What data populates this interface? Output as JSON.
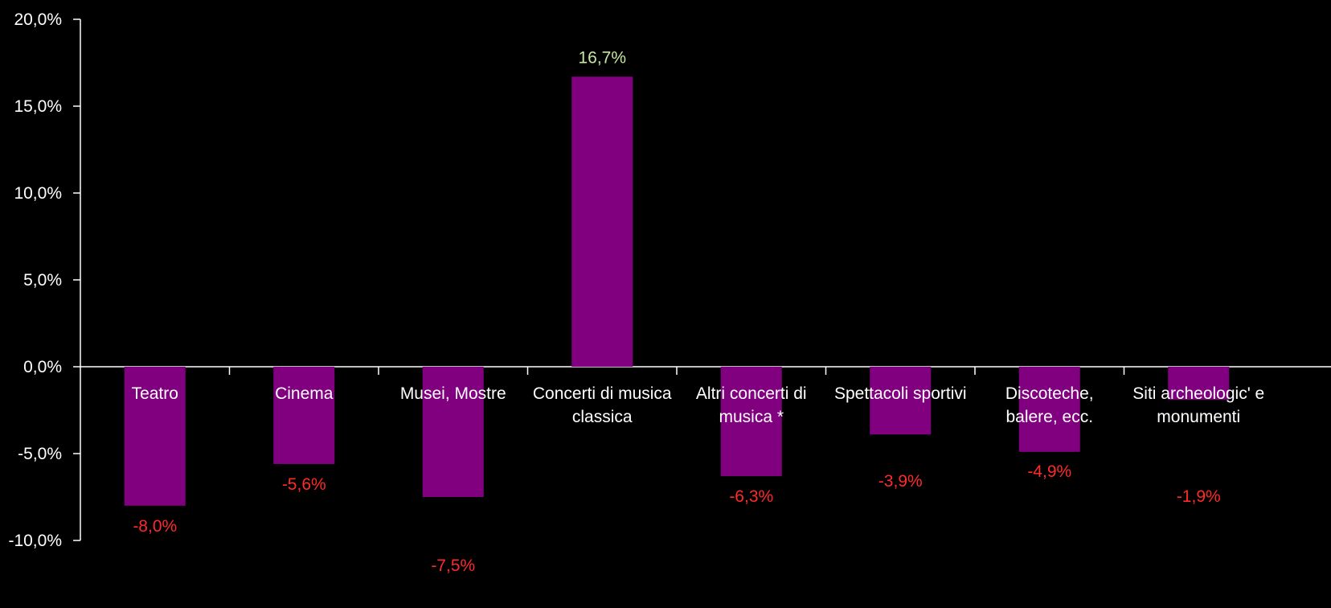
{
  "chart_data": {
    "type": "bar",
    "categories": [
      [
        "Teatro"
      ],
      [
        "Cinema"
      ],
      [
        "Musei, Mostre"
      ],
      [
        "Concerti di musica",
        "classica"
      ],
      [
        "Altri concerti di",
        "musica *"
      ],
      [
        "Spettacoli sportivi"
      ],
      [
        "Discoteche,",
        "balere, ecc."
      ],
      [
        "Siti archeologic' e",
        "monumenti"
      ]
    ],
    "values": [
      -8.0,
      -5.6,
      -7.5,
      16.7,
      -6.3,
      -3.9,
      -4.9,
      -1.9
    ],
    "data_labels": [
      "-8,0%",
      "-5,6%",
      "-7,5%",
      "16,7%",
      "-6,3%",
      "-3,9%",
      "-4,9%",
      "-1,9%"
    ],
    "y_ticks": [
      {
        "value": 20,
        "label": "20,0%"
      },
      {
        "value": 15,
        "label": "15,0%"
      },
      {
        "value": 10,
        "label": "10,0%"
      },
      {
        "value": 5,
        "label": "5,0%"
      },
      {
        "value": 0,
        "label": "0,0%"
      },
      {
        "value": -5,
        "label": "-5,0%"
      },
      {
        "value": -10,
        "label": "-10,0%"
      }
    ],
    "ylim": [
      -10,
      20
    ],
    "title": "",
    "xlabel": "",
    "ylabel": "",
    "grid": false,
    "legend": "none",
    "colors": {
      "bar": "#800080",
      "positive_label": "#c8e6a0",
      "negative_label": "#ff2a2a",
      "axis": "#ffffff",
      "text": "#ffffff",
      "background": "#000000"
    }
  }
}
